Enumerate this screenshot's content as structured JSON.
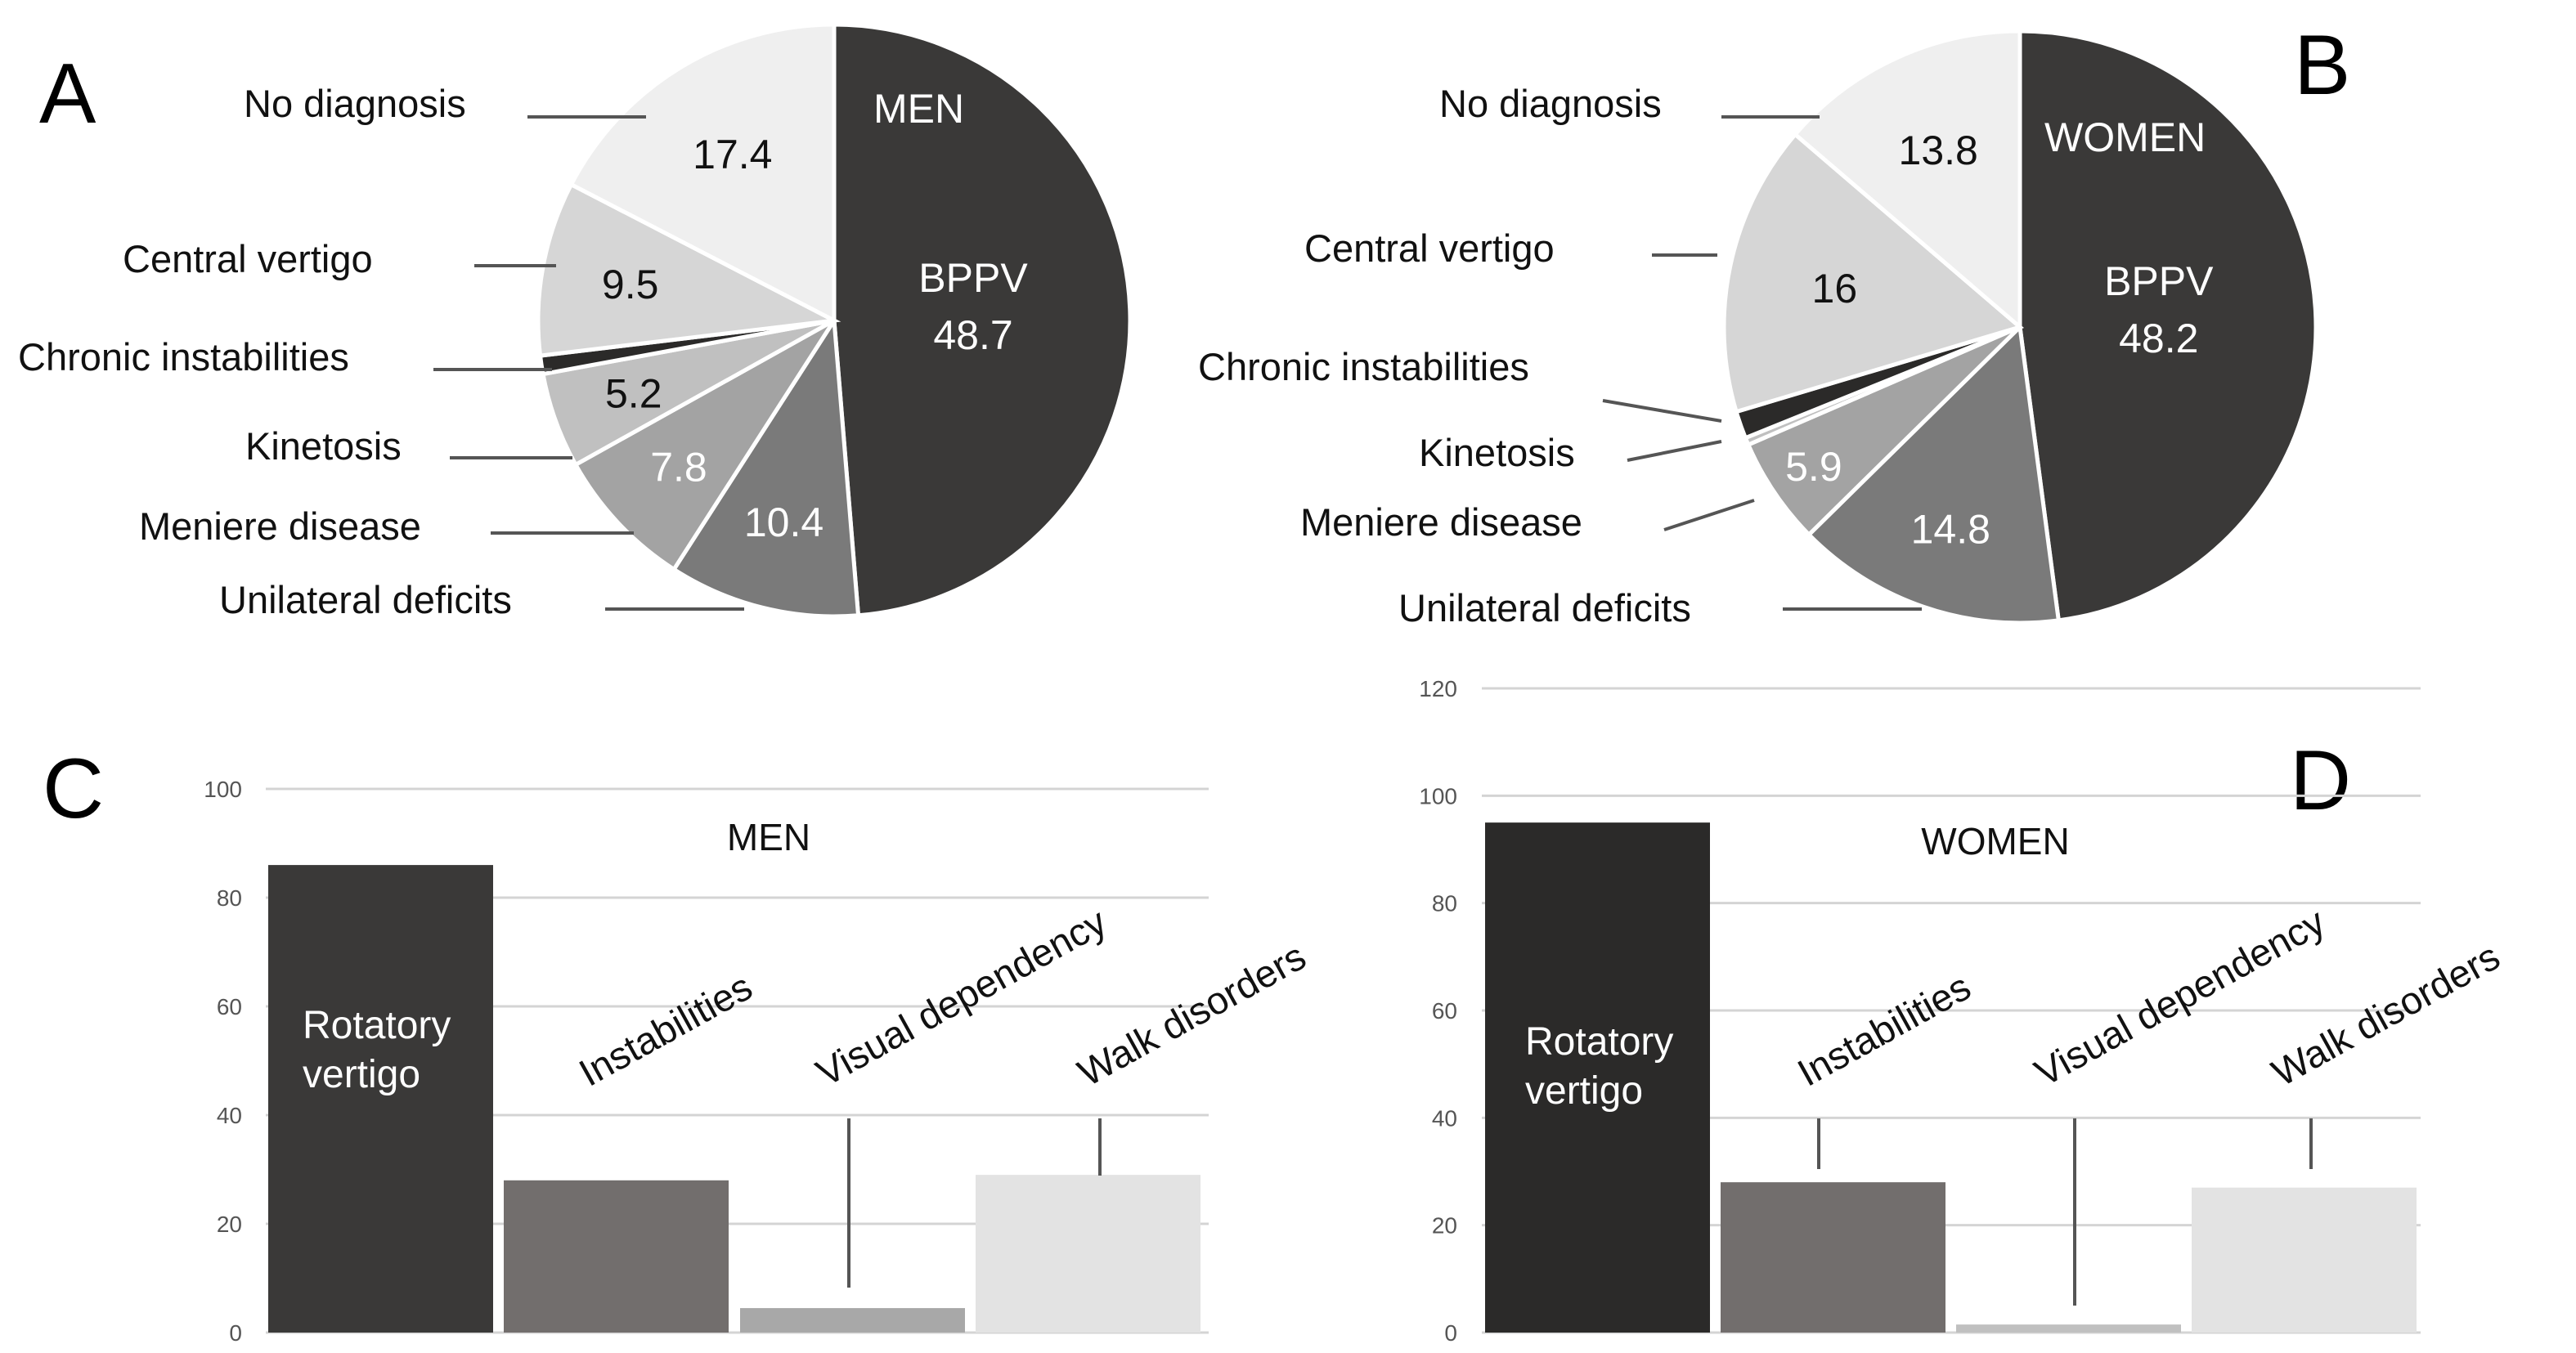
{
  "colors": {
    "dark": "#3a3938",
    "darkest": "#2b2a29",
    "mid": "#7a7a7a",
    "midBar": "#726e6d",
    "light1": "#a3a3a3",
    "light2": "#c0c0c0",
    "light3": "#d6d6d6",
    "light4": "#efefef",
    "barLight": "#e3e3e3",
    "barMid2": "#a8a8a8",
    "grid": "#d4d4d4",
    "leader": "#555555"
  },
  "chart_data": [
    {
      "panel": "A",
      "type": "pie",
      "title": "MEN",
      "slices": [
        {
          "label": "BPPV",
          "value": 48.7,
          "value_label": "48.7",
          "color": "dark",
          "text_color": "#ffffff"
        },
        {
          "label": "Unilateral deficits",
          "value": 10.4,
          "value_label": "10.4",
          "color": "mid",
          "text_color": "#ffffff"
        },
        {
          "label": "Meniere disease",
          "value": 7.8,
          "value_label": "7.8",
          "color": "light1",
          "text_color": "#ffffff"
        },
        {
          "label": "Kinetosis",
          "value": 5.2,
          "value_label": "5.2",
          "color": "light2",
          "text_color": "#111111"
        },
        {
          "label": "Chronic instabilities",
          "value": 1.0,
          "value_label": "",
          "color": "darkest",
          "text_color": "#111111"
        },
        {
          "label": "Central vertigo",
          "value": 9.5,
          "value_label": "9.5",
          "color": "light3",
          "text_color": "#111111"
        },
        {
          "label": "No diagnosis",
          "value": 17.4,
          "value_label": "17.4",
          "color": "light4",
          "text_color": "#111111"
        }
      ]
    },
    {
      "panel": "B",
      "type": "pie",
      "title": "WOMEN",
      "slices": [
        {
          "label": "BPPV",
          "value": 48.2,
          "value_label": "48.2",
          "color": "dark",
          "text_color": "#ffffff"
        },
        {
          "label": "Unilateral deficits",
          "value": 14.8,
          "value_label": "14.8",
          "color": "mid",
          "text_color": "#ffffff"
        },
        {
          "label": "Meniere disease",
          "value": 5.9,
          "value_label": "5.9",
          "color": "light1",
          "text_color": "#ffffff"
        },
        {
          "label": "Kinetosis",
          "value": 0.4,
          "value_label": "",
          "color": "light2",
          "text_color": "#111111"
        },
        {
          "label": "Chronic instabilities",
          "value": 1.5,
          "value_label": "",
          "color": "darkest",
          "text_color": "#111111"
        },
        {
          "label": "Central vertigo",
          "value": 16,
          "value_label": "16",
          "color": "light3",
          "text_color": "#111111"
        },
        {
          "label": "No diagnosis",
          "value": 13.8,
          "value_label": "13.8",
          "color": "light4",
          "text_color": "#111111"
        }
      ]
    },
    {
      "panel": "C",
      "type": "bar",
      "title": "MEN",
      "categories": [
        "Rotatory vertigo",
        "Instabilities",
        "Visual dependency",
        "Walk disorders"
      ],
      "category_lines": [
        [
          "Rotatory",
          "vertigo"
        ],
        [
          "Instabilities"
        ],
        [
          "Visual dependency"
        ],
        [
          "Walk disorders"
        ]
      ],
      "values": [
        86,
        28,
        4.5,
        29
      ],
      "colors": [
        "dark",
        "midBar",
        "barMid2",
        "barLight"
      ],
      "ylim": [
        0,
        100
      ],
      "yticks": [
        "0",
        "20",
        "40",
        "60",
        "80",
        "100"
      ]
    },
    {
      "panel": "D",
      "type": "bar",
      "title": "WOMEN",
      "categories": [
        "Rotatory vertigo",
        "Instabilities",
        "Visual dependency",
        "Walk disorders"
      ],
      "category_lines": [
        [
          "Rotatory",
          "vertigo"
        ],
        [
          "Instabilities"
        ],
        [
          "Visual dependency"
        ],
        [
          "Walk disorders"
        ]
      ],
      "values": [
        95,
        28,
        1.5,
        27
      ],
      "colors": [
        "darkest",
        "midBar",
        "light2",
        "barLight"
      ],
      "ylim": [
        0,
        120
      ],
      "yticks": [
        "0",
        "20",
        "40",
        "60",
        "80",
        "100",
        "120"
      ]
    }
  ]
}
